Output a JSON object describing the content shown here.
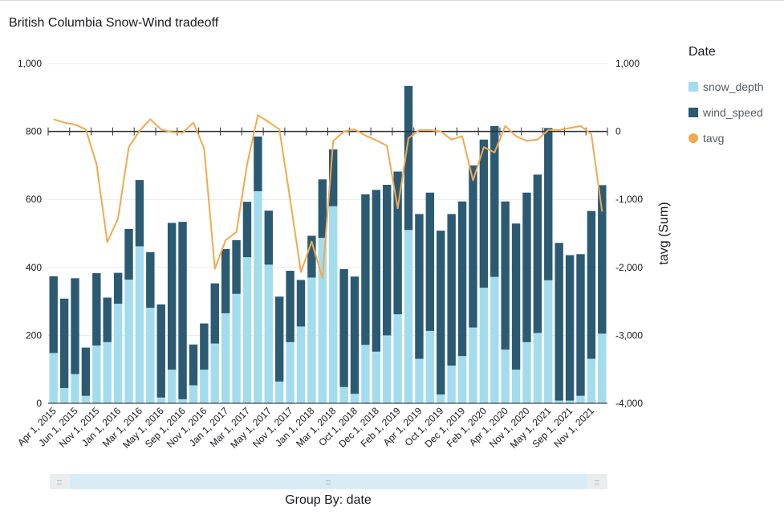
{
  "title": "British Columbia Snow-Wind tradeoff",
  "legend": {
    "title": "Date",
    "items": [
      {
        "label": "snow_depth",
        "color": "#a3dcee"
      },
      {
        "label": "wind_speed",
        "color": "#2c5a73"
      },
      {
        "label": "tavg",
        "color": "#f2a94e"
      }
    ]
  },
  "group_by": "Group By: date",
  "chart_data": {
    "type": "bar",
    "stacked": true,
    "x": [
      "Apr 1, 2015",
      "May 1, 2015",
      "Jun 1, 2015",
      "Jul 1, 2015",
      "Nov 1, 2015",
      "Dec 1, 2015",
      "Jan 1, 2016",
      "Feb 1, 2016",
      "Mar 1, 2016",
      "Apr 1, 2016",
      "May 1, 2016",
      "Jun 1, 2016",
      "Sep 1, 2016",
      "Oct 1, 2016",
      "Nov 1, 2016",
      "Dec 1, 2016",
      "Jan 1, 2017",
      "Feb 1, 2017",
      "Mar 1, 2017",
      "Apr 1, 2017",
      "May 1, 2017",
      "Jun 1, 2017",
      "Nov 1, 2017",
      "Dec 1, 2017",
      "Jan 1, 2018",
      "Feb 1, 2018",
      "Mar 1, 2018",
      "Apr 1, 2018",
      "Oct 1, 2018",
      "Nov 1, 2018",
      "Dec 1, 2018",
      "Jan 1, 2019",
      "Feb 1, 2019",
      "Mar 1, 2019",
      "Apr 1, 2019",
      "May 1, 2019",
      "Oct 1, 2019",
      "Nov 1, 2019",
      "Dec 1, 2019",
      "Jan 1, 2020",
      "Feb 1, 2020",
      "Mar 1, 2020",
      "Apr 1, 2020",
      "May 1, 2020",
      "Nov 1, 2020",
      "Dec 1, 2020",
      "May 1, 2021",
      "Jun 1, 2021",
      "Sep 1, 2021",
      "Oct 1, 2021",
      "Nov 1, 2021",
      "Dec 1, 2021"
    ],
    "x_tick_labels": [
      "Apr 1, 2015",
      "Jun 1, 2015",
      "Nov 1, 2015",
      "Jan 1, 2016",
      "Mar 1, 2016",
      "May 1, 2016",
      "Sep 1, 2016",
      "Nov 1, 2016",
      "Jan 1, 2017",
      "Mar 1, 2017",
      "May 1, 2017",
      "Nov 1, 2017",
      "Jan 1, 2018",
      "Mar 1, 2018",
      "Oct 1, 2018",
      "Dec 1, 2018",
      "Feb 1, 2019",
      "Apr 1, 2019",
      "Oct 1, 2019",
      "Dec 1, 2019",
      "Feb 1, 2020",
      "Apr 1, 2020",
      "Nov 1, 2020",
      "May 1, 2021",
      "Sep 1, 2021",
      "Nov 1, 2021"
    ],
    "series": [
      {
        "name": "snow_depth",
        "axis": "left",
        "values": [
          148,
          45,
          86,
          22,
          170,
          180,
          293,
          364,
          462,
          281,
          17,
          99,
          12,
          53,
          99,
          176,
          265,
          322,
          430,
          624,
          408,
          64,
          180,
          226,
          370,
          487,
          580,
          48,
          28,
          172,
          152,
          200,
          262,
          510,
          131,
          213,
          26,
          111,
          139,
          223,
          340,
          372,
          158,
          99,
          180,
          207,
          362,
          8,
          8,
          22,
          131,
          205
        ]
      },
      {
        "name": "wind_speed",
        "axis": "left",
        "values": [
          226,
          263,
          282,
          142,
          213,
          131,
          91,
          149,
          195,
          164,
          274,
          432,
          522,
          120,
          136,
          177,
          189,
          158,
          163,
          161,
          159,
          250,
          210,
          137,
          123,
          172,
          167,
          347,
          345,
          443,
          476,
          443,
          420,
          424,
          426,
          407,
          482,
          446,
          455,
          477,
          436,
          444,
          436,
          430,
          440,
          466,
          448,
          464,
          428,
          417,
          435,
          437
        ]
      },
      {
        "name": "tavg",
        "axis": "right",
        "type": "line",
        "values": [
          180,
          130,
          100,
          30,
          -480,
          -1630,
          -1280,
          -230,
          10,
          180,
          30,
          -10,
          -20,
          130,
          -250,
          -2020,
          -1600,
          -1480,
          -480,
          240,
          140,
          30,
          -1000,
          -2070,
          -1620,
          -2160,
          -140,
          0,
          30,
          -60,
          -130,
          -210,
          -1130,
          -100,
          20,
          20,
          0,
          -120,
          -70,
          -720,
          -230,
          -310,
          80,
          -70,
          -140,
          -120,
          20,
          20,
          50,
          80,
          -40,
          -1180
        ]
      }
    ],
    "y_left": {
      "ticks": [
        0,
        200,
        400,
        600,
        800,
        1000
      ],
      "tick_labels": [
        "0",
        "200",
        "400",
        "600",
        "800",
        "1,000"
      ],
      "lim": [
        0,
        1000
      ]
    },
    "y_right": {
      "label": "tavg (Sum)",
      "ticks": [
        -4000,
        -3000,
        -2000,
        -1000,
        0,
        1000
      ],
      "tick_labels": [
        "-4,000",
        "-3,000",
        "-2,000",
        "-1,000",
        "0",
        "1,000"
      ],
      "lim": [
        -4000,
        1000
      ]
    },
    "grid": true,
    "legend_position": "right"
  }
}
